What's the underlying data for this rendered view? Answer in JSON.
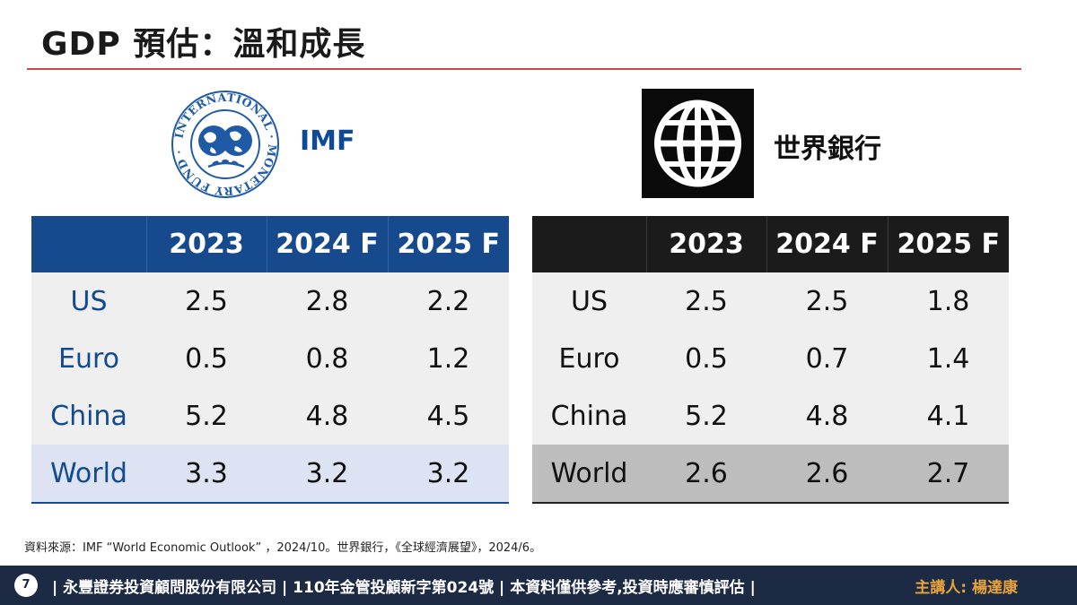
{
  "title": "GDP 預估：溫和成長",
  "imf": {
    "logo_text": "INTERNATIONAL MONETARY FUND",
    "label": "IMF",
    "headers": [
      "",
      "2023",
      "2024 F",
      "2025 F"
    ],
    "rows": [
      {
        "country": "US",
        "values": [
          "2.5",
          "2.8",
          "2.2"
        ]
      },
      {
        "country": "Euro",
        "values": [
          "0.5",
          "0.8",
          "1.2"
        ]
      },
      {
        "country": "China",
        "values": [
          "5.2",
          "4.8",
          "4.5"
        ]
      },
      {
        "country": "World",
        "values": [
          "3.3",
          "3.2",
          "3.2"
        ]
      }
    ]
  },
  "world_bank": {
    "label": "世界銀行",
    "headers": [
      "",
      "2023",
      "2024 F",
      "2025 F"
    ],
    "rows": [
      {
        "country": "US",
        "values": [
          "2.5",
          "2.5",
          "1.8"
        ]
      },
      {
        "country": "Euro",
        "values": [
          "0.5",
          "0.7",
          "1.4"
        ]
      },
      {
        "country": "China",
        "values": [
          "5.2",
          "4.8",
          "4.1"
        ]
      },
      {
        "country": "World",
        "values": [
          "2.6",
          "2.6",
          "2.7"
        ]
      }
    ]
  },
  "source": "資料來源：IMF “World Economic Outlook” ，2024/10。世界銀行，《全球經濟展望》，2024/6。",
  "footer": {
    "page_number": "7",
    "disclaimer": "| 永豐證券投資顧問股份有限公司 | 110年金管投顧新字第024號 | 本資料僅供參考,投資時應審慎評估 |",
    "presenter": "主講人: 楊達康"
  },
  "colors": {
    "imf_header": "#174a8c",
    "imf_country_text": "#124a8e",
    "imf_world_row": "#dde3f3",
    "wb_header": "#1b1b1b",
    "wb_world_row": "#bdbdbd",
    "title_rule": "#c9474d",
    "footer_bg": "#1c2a44",
    "presenter_text": "#e8a33c"
  }
}
